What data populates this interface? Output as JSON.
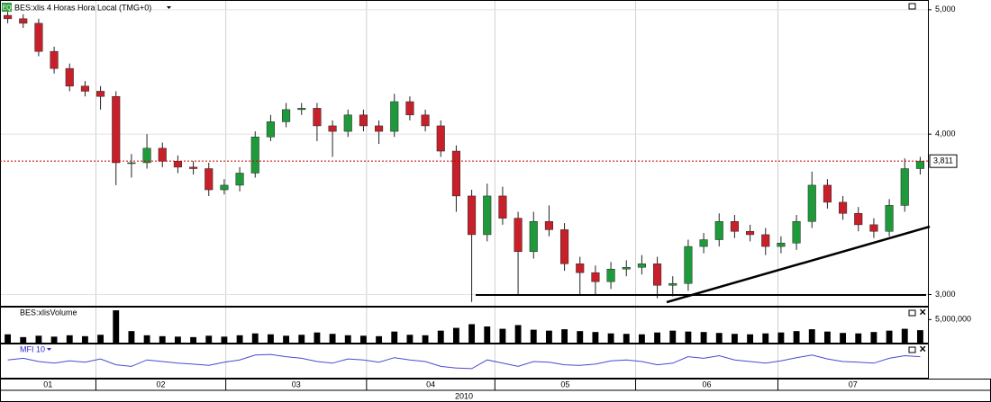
{
  "chart_data": [
    {
      "type": "candlestick",
      "title": "BES:xlis 4 Horas Hora Local (TMG+0)",
      "xlabel": "2010",
      "open": [
        4950,
        4920,
        4880,
        4640,
        4500,
        4360,
        4320,
        4280,
        3800,
        3800,
        3900,
        3810,
        3770,
        3760,
        3620,
        3650,
        3730,
        3980,
        4090,
        4180,
        4190,
        4060,
        4020,
        4140,
        4060,
        4020,
        4240,
        4140,
        4060,
        3880,
        3580,
        3340,
        3580,
        3440,
        3240,
        3420,
        3370,
        3170,
        3120,
        3070,
        3140,
        3150,
        3170,
        3050,
        3060,
        3270,
        3310,
        3420,
        3360,
        3340,
        3270,
        3290,
        3420,
        3650,
        3540,
        3470,
        3400,
        3360,
        3520,
        3760
      ],
      "high": [
        4990,
        4960,
        4920,
        4680,
        4540,
        4400,
        4360,
        4320,
        3860,
        4000,
        3940,
        3850,
        3810,
        3800,
        3690,
        3770,
        4020,
        4140,
        4230,
        4230,
        4230,
        4100,
        4180,
        4180,
        4100,
        4300,
        4280,
        4180,
        4100,
        3920,
        3620,
        3660,
        3640,
        3480,
        3480,
        3520,
        3410,
        3210,
        3160,
        3180,
        3190,
        3220,
        3210,
        3100,
        3310,
        3350,
        3470,
        3460,
        3400,
        3380,
        3330,
        3460,
        3740,
        3690,
        3580,
        3510,
        3440,
        3560,
        3830,
        3840
      ],
      "low": [
        4880,
        4840,
        4600,
        4460,
        4320,
        4280,
        4180,
        3650,
        3700,
        3760,
        3770,
        3730,
        3720,
        3580,
        3590,
        3610,
        3700,
        3950,
        4050,
        4140,
        3950,
        3840,
        3980,
        4020,
        3930,
        3980,
        4100,
        4020,
        3840,
        3480,
        2960,
        3300,
        3400,
        3000,
        3200,
        3330,
        3130,
        3000,
        3000,
        3030,
        3100,
        3110,
        2980,
        2990,
        3020,
        3230,
        3270,
        3320,
        3300,
        3220,
        3230,
        3250,
        3380,
        3500,
        3430,
        3360,
        3320,
        3330,
        3480,
        3720
      ],
      "close": [
        4920,
        4880,
        4640,
        4500,
        4360,
        4320,
        4280,
        3800,
        3800,
        3900,
        3810,
        3770,
        3760,
        3620,
        3650,
        3730,
        3980,
        4090,
        4180,
        4190,
        4060,
        4020,
        4140,
        4060,
        4020,
        4240,
        4140,
        4060,
        3880,
        3580,
        3340,
        3580,
        3440,
        3240,
        3420,
        3370,
        3170,
        3120,
        3070,
        3140,
        3150,
        3170,
        3050,
        3060,
        3270,
        3310,
        3420,
        3360,
        3340,
        3270,
        3290,
        3420,
        3650,
        3540,
        3470,
        3400,
        3360,
        3520,
        3760,
        3811
      ],
      "last_label": "3,811",
      "up_color": "#1f9a3a",
      "down_color": "#c8202a",
      "last_color": "#cc0000",
      "log_scale": true,
      "ylim": [
        2940,
        5080
      ],
      "yticks": [
        {
          "value": 5000,
          "label": "5,000"
        },
        {
          "value": 4000,
          "label": "4,000"
        },
        {
          "value": 3000,
          "label": "3,000"
        }
      ],
      "xlim": [
        0,
        60
      ],
      "xticks": [
        {
          "value": 0,
          "label": "01"
        },
        {
          "value": 6.2,
          "label": "02"
        },
        {
          "value": 14.6,
          "label": "03"
        },
        {
          "value": 23.7,
          "label": "04"
        },
        {
          "value": 32,
          "label": "05"
        },
        {
          "value": 41.1,
          "label": "06"
        },
        {
          "value": 50.3,
          "label": "07"
        }
      ],
      "grid": true
    },
    {
      "type": "bar",
      "title": "BES:xlisVolume",
      "color": "#000000",
      "values": [
        1800000,
        1200000,
        1500000,
        1300000,
        1600000,
        1400000,
        1700000,
        7000000,
        2500000,
        1600000,
        1400000,
        1300000,
        1200000,
        1500000,
        1300000,
        1600000,
        2000000,
        1800000,
        1500000,
        1700000,
        2200000,
        1900000,
        1600000,
        1500000,
        1400000,
        2400000,
        1700000,
        1600000,
        2600000,
        3200000,
        4000000,
        3500000,
        3000000,
        3800000,
        2800000,
        2600000,
        2900000,
        2500000,
        2300000,
        2000000,
        1900000,
        1800000,
        2200000,
        2600000,
        2400000,
        2300000,
        2100000,
        1900000,
        1800000,
        2000000,
        2200000,
        2500000,
        2900000,
        2400000,
        2100000,
        2000000,
        2300000,
        2600000,
        3000000,
        2700000
      ],
      "ylim": [
        0,
        7400000
      ],
      "yticks": [
        {
          "value": 5000000,
          "label": "5,000,000"
        }
      ]
    },
    {
      "type": "line",
      "title": "MFI 10",
      "color": "#4a4ad0",
      "values": [
        55,
        60,
        50,
        45,
        52,
        48,
        58,
        40,
        35,
        55,
        50,
        45,
        42,
        38,
        48,
        55,
        70,
        72,
        65,
        60,
        50,
        45,
        58,
        55,
        48,
        62,
        55,
        50,
        35,
        30,
        28,
        55,
        45,
        35,
        50,
        48,
        40,
        38,
        42,
        52,
        55,
        50,
        40,
        45,
        65,
        60,
        68,
        55,
        50,
        45,
        52,
        62,
        70,
        58,
        50,
        48,
        45,
        60,
        68,
        65
      ],
      "ylim": [
        0,
        100
      ]
    }
  ]
}
